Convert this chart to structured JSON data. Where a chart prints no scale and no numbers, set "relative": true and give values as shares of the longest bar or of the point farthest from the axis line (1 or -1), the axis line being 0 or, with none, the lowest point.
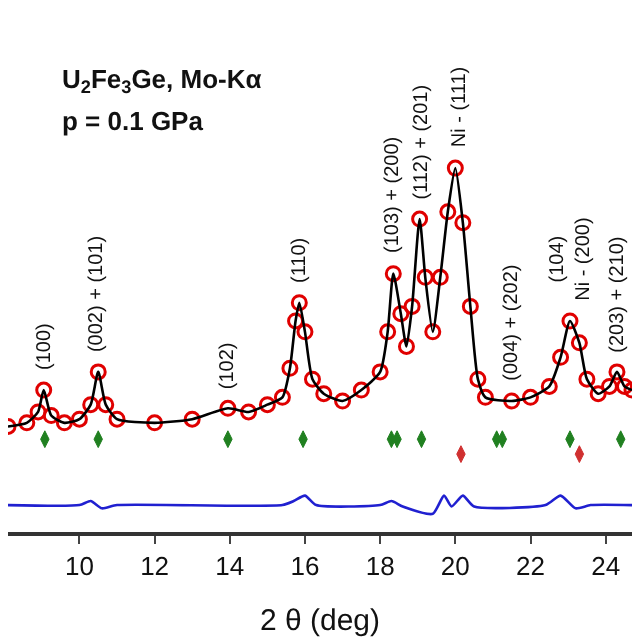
{
  "chart_data": {
    "type": "line",
    "relative": true,
    "xlabel": "2 θ (deg)",
    "xlim": [
      8.1,
      24.7
    ],
    "xticks": [
      10,
      12,
      14,
      16,
      18,
      20,
      22,
      24
    ],
    "tick_labels": "x",
    "x": [
      8.1,
      8.6,
      8.9,
      9.05,
      9.25,
      9.6,
      10.0,
      10.3,
      10.5,
      10.7,
      11.0,
      12.0,
      13.0,
      13.95,
      14.5,
      15.0,
      15.4,
      15.6,
      15.75,
      15.85,
      16.0,
      16.2,
      16.5,
      17.0,
      17.5,
      18.0,
      18.2,
      18.35,
      18.55,
      18.7,
      18.85,
      19.05,
      19.2,
      19.4,
      19.6,
      19.8,
      20.0,
      20.2,
      20.4,
      20.6,
      20.8,
      21.5,
      22.0,
      22.5,
      22.8,
      23.05,
      23.3,
      23.5,
      23.8,
      24.1,
      24.3,
      24.5,
      24.7
    ],
    "series": [
      {
        "type": "scatter",
        "marker": "circle",
        "color": "#e00000",
        "values": [
          0.29,
          0.3,
          0.33,
          0.39,
          0.32,
          0.3,
          0.31,
          0.35,
          0.44,
          0.35,
          0.31,
          0.3,
          0.31,
          0.34,
          0.33,
          0.35,
          0.37,
          0.45,
          0.58,
          0.63,
          0.55,
          0.42,
          0.38,
          0.36,
          0.39,
          0.44,
          0.55,
          0.71,
          0.6,
          0.51,
          0.62,
          0.86,
          0.7,
          0.55,
          0.7,
          0.88,
          1.0,
          0.85,
          0.62,
          0.42,
          0.37,
          0.36,
          0.37,
          0.4,
          0.48,
          0.58,
          0.52,
          0.42,
          0.38,
          0.4,
          0.44,
          0.4,
          0.39
        ]
      },
      {
        "color": "#000000",
        "values": [
          0.29,
          0.3,
          0.33,
          0.39,
          0.32,
          0.3,
          0.31,
          0.35,
          0.44,
          0.35,
          0.31,
          0.3,
          0.31,
          0.34,
          0.33,
          0.35,
          0.37,
          0.45,
          0.58,
          0.63,
          0.55,
          0.42,
          0.38,
          0.36,
          0.39,
          0.44,
          0.55,
          0.71,
          0.6,
          0.51,
          0.62,
          0.86,
          0.7,
          0.55,
          0.7,
          0.88,
          1.0,
          0.85,
          0.62,
          0.42,
          0.37,
          0.36,
          0.37,
          0.4,
          0.48,
          0.58,
          0.52,
          0.42,
          0.38,
          0.4,
          0.44,
          0.4,
          0.39
        ]
      },
      {
        "color": "#2020d0",
        "x": [
          8.1,
          10.0,
          10.3,
          10.6,
          11.0,
          15.4,
          15.7,
          16.0,
          16.3,
          18.0,
          18.3,
          18.6,
          19.4,
          19.7,
          19.9,
          20.2,
          20.5,
          22.4,
          22.8,
          23.2,
          23.6,
          24.7
        ],
        "values": [
          0.074,
          0.074,
          0.085,
          0.065,
          0.074,
          0.074,
          0.085,
          0.1,
          0.074,
          0.074,
          0.085,
          0.07,
          0.05,
          0.1,
          0.07,
          0.1,
          0.07,
          0.074,
          0.1,
          0.065,
          0.074,
          0.074
        ]
      },
      {
        "type": "scatter",
        "marker": "diamond",
        "color": "#208020",
        "x": [
          9.08,
          10.5,
          13.95,
          15.95,
          18.3,
          18.45,
          19.1,
          21.1,
          21.25,
          23.05,
          24.4
        ],
        "values": [
          0.255,
          0.255,
          0.255,
          0.255,
          0.255,
          0.255,
          0.255,
          0.255,
          0.255,
          0.255,
          0.255
        ]
      },
      {
        "type": "scatter",
        "marker": "diamond",
        "color": "#d03030",
        "x": [
          20.15,
          23.3
        ],
        "values": [
          0.214,
          0.214
        ]
      }
    ],
    "annotations": [
      "U$_{2}$Fe$_{3}$Ge, Mo-Kα",
      "p = 0.1 GPa",
      {
        "text": "(100)",
        "x": 9.08,
        "y": 0.39
      },
      {
        "text": "(002) + (101)",
        "x": 10.5,
        "y": 0.44
      },
      {
        "text": "(102)",
        "x": 13.95,
        "y": 0.34
      },
      {
        "text": "(110)",
        "x": 15.9,
        "y": 0.63
      },
      {
        "text": "(103) + (200)",
        "x": 18.35,
        "y": 0.71
      },
      {
        "text": "(112) + (201)",
        "x": 19.1,
        "y": 0.86
      },
      {
        "text": "Ni - (111)",
        "x": 20.1,
        "y": 1.0
      },
      {
        "text": "(004) + (202)",
        "x": 21.5,
        "y": 0.36
      },
      {
        "text": "(104)\nNi - (200)",
        "x": 23.1,
        "y": 0.58
      },
      {
        "text": "(203) + (210)",
        "x": 24.35,
        "y": 0.44
      }
    ]
  }
}
